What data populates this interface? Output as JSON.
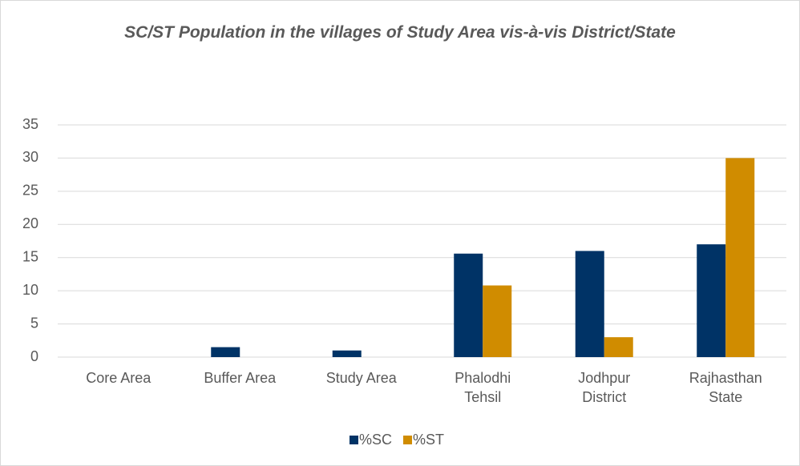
{
  "chart_data": {
    "type": "bar",
    "title": "SC/ST Population in the villages of Study Area vis-à-vis District/State",
    "categories": [
      "Core Area",
      "Buffer Area",
      "Study Area",
      "Phalodhi Tehsil",
      "Jodhpur District",
      "Rajhasthan State"
    ],
    "series": [
      {
        "name": "%SC",
        "color": "#003366",
        "values": [
          0,
          1.5,
          1.0,
          15.6,
          16,
          17
        ]
      },
      {
        "name": "%ST",
        "color": "#d08c00",
        "values": [
          0,
          0,
          0,
          10.8,
          3,
          30
        ]
      }
    ],
    "ylim": [
      0,
      35
    ],
    "yticks": [
      0,
      5,
      10,
      15,
      20,
      25,
      30,
      35
    ],
    "grid": true,
    "legend": "bottom"
  }
}
